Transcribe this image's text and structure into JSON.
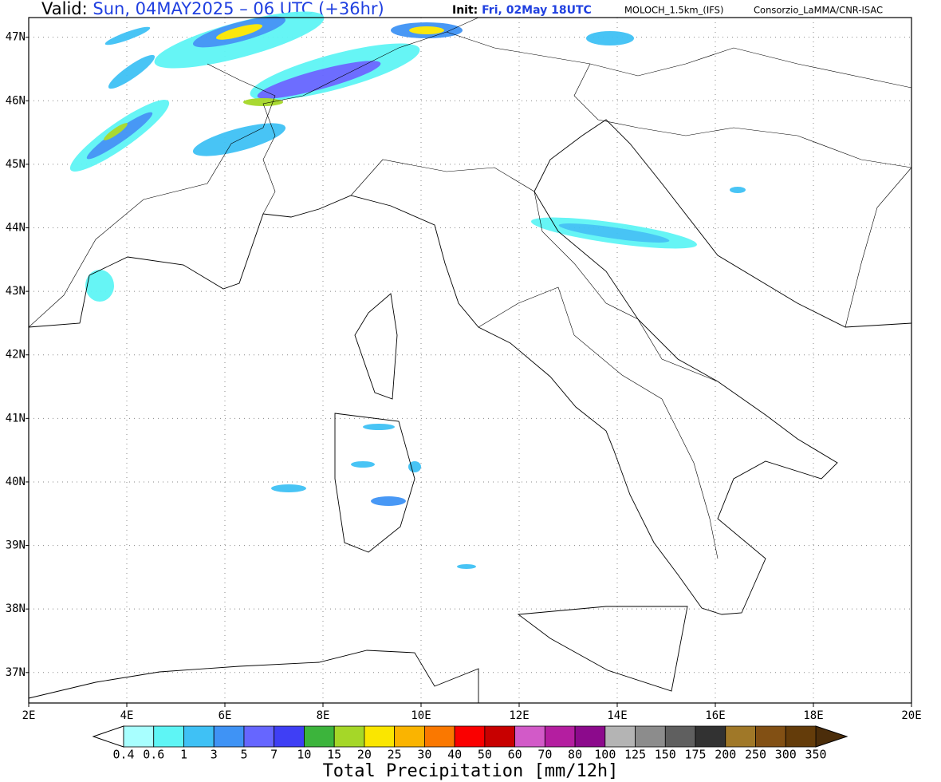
{
  "header": {
    "valid_label": "Valid:",
    "valid_time": "Sun, 04MAY2025 – 06 UTC (+36hr)",
    "init_label": "Init:",
    "init_time": "Fri, 02May 18UTC",
    "model": "MOLOCH_1.5km_(IFS)",
    "source": "Consorzio_LaMMA/CNR-ISAC"
  },
  "map": {
    "xlim": [
      2,
      20
    ],
    "ylim": [
      36.52,
      47.31
    ],
    "xticks": [
      {
        "value": 2,
        "label": "2E"
      },
      {
        "value": 4,
        "label": "4E"
      },
      {
        "value": 6,
        "label": "6E"
      },
      {
        "value": 8,
        "label": "8E"
      },
      {
        "value": 10,
        "label": "10E"
      },
      {
        "value": 12,
        "label": "12E"
      },
      {
        "value": 14,
        "label": "14E"
      },
      {
        "value": 16,
        "label": "16E"
      },
      {
        "value": 18,
        "label": "18E"
      },
      {
        "value": 20,
        "label": "20E"
      }
    ],
    "yticks": [
      {
        "value": 37,
        "label": "37N"
      },
      {
        "value": 38,
        "label": "38N"
      },
      {
        "value": 39,
        "label": "39N"
      },
      {
        "value": 40,
        "label": "40N"
      },
      {
        "value": 41,
        "label": "41N"
      },
      {
        "value": 42,
        "label": "42N"
      },
      {
        "value": 43,
        "label": "43N"
      },
      {
        "value": 44,
        "label": "44N"
      },
      {
        "value": 45,
        "label": "45N"
      },
      {
        "value": 46,
        "label": "46N"
      },
      {
        "value": 47,
        "label": "47N"
      }
    ],
    "grid": true
  },
  "legend": {
    "title": "Total Precipitation [mm/12h]",
    "levels": [
      0.4,
      0.6,
      1,
      3,
      5,
      7,
      10,
      15,
      20,
      25,
      30,
      40,
      50,
      60,
      70,
      80,
      100,
      125,
      150,
      175,
      200,
      250,
      300,
      350
    ],
    "colors": [
      "#a8ffff",
      "#5ef5f5",
      "#3fc1f5",
      "#3f93f5",
      "#6666ff",
      "#3f3ff5",
      "#3cb43c",
      "#a5d728",
      "#fae600",
      "#fab400",
      "#fa7800",
      "#fa0000",
      "#c80000",
      "#d25ac8",
      "#b41ea0",
      "#8c0a8c",
      "#b4b4b4",
      "#8c8c8c",
      "#5f5f5f",
      "#323232",
      "#a07828",
      "#825014",
      "#643c0a"
    ],
    "under_color": "#ffffff",
    "over_color": "#4b2d0a"
  }
}
